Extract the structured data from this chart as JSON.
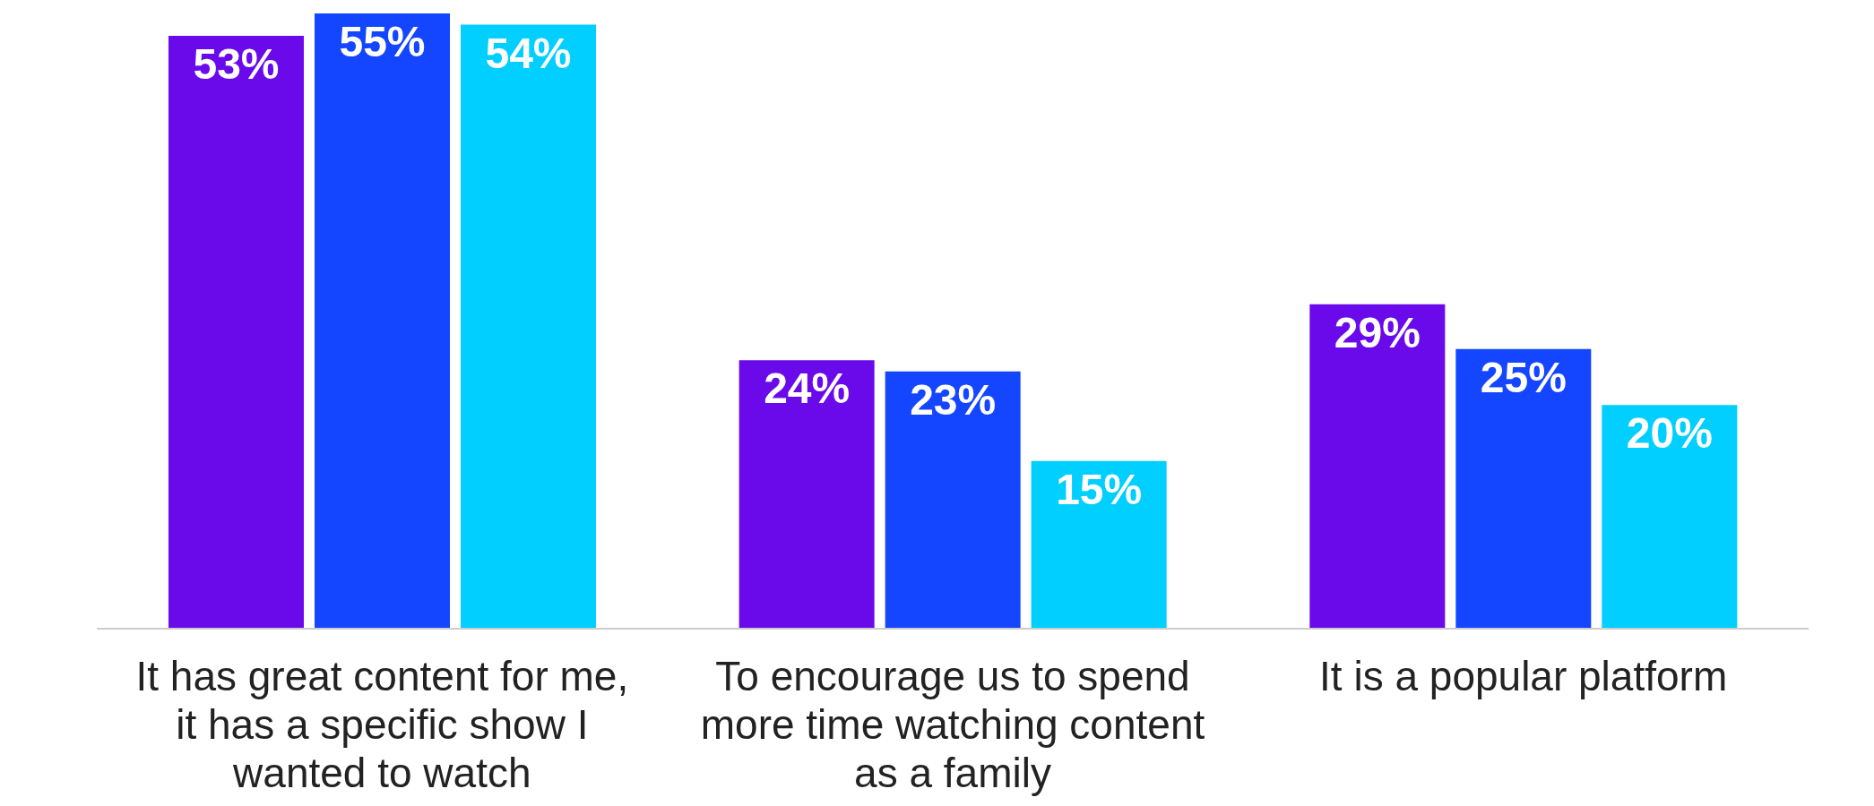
{
  "chart_data": {
    "type": "bar",
    "categories": [
      "It has great content for me, it has a specific show I wanted to watch",
      "To encourage us to spend more time watching content as a family",
      "It is a popular platform"
    ],
    "series": [
      {
        "color": "#6a0aeb",
        "values": [
          53,
          24,
          29
        ],
        "value_labels": [
          "53%",
          "24%",
          "29%"
        ]
      },
      {
        "color": "#1446ff",
        "values": [
          55,
          23,
          25
        ],
        "value_labels": [
          "55%",
          "23%",
          "25%"
        ]
      },
      {
        "color": "#00cfff",
        "values": [
          54,
          15,
          20
        ],
        "value_labels": [
          "54%",
          "15%",
          "20%"
        ]
      }
    ],
    "grid": false,
    "legend": false
  }
}
